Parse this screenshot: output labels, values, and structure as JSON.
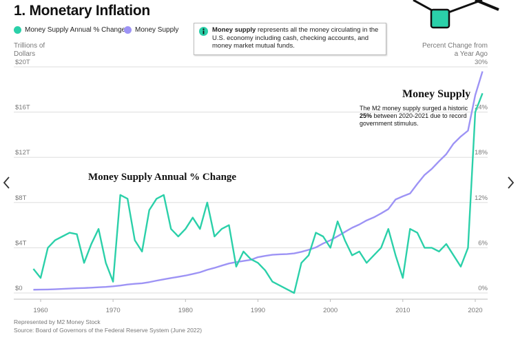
{
  "title": "1. Monetary Inflation",
  "info": {
    "bold": "Money supply",
    "text": " represents all the money circulating in the U.S. economy including cash, checking accounts, and money market mutual funds."
  },
  "chart_data": {
    "type": "line",
    "y_axis_label": "Trillions of Dollars",
    "y2_axis_label": "Percent Change from a Year Ago",
    "xlim": [
      1958.5,
      2022
    ],
    "xticks": [
      1960,
      1970,
      1980,
      1990,
      2000,
      2010,
      2020
    ],
    "ylim": [
      0,
      20
    ],
    "yticks": [
      {
        "value": 0,
        "label": "$0"
      },
      {
        "value": 4,
        "label": "$4T"
      },
      {
        "value": 8,
        "label": "$8T"
      },
      {
        "value": 12,
        "label": "$12T"
      },
      {
        "value": 16,
        "label": "$16T"
      },
      {
        "value": 20,
        "label": "$20T"
      }
    ],
    "y2lim": [
      0,
      30
    ],
    "y2ticks": [
      {
        "value": 0,
        "label": "0%"
      },
      {
        "value": 6,
        "label": "6%"
      },
      {
        "value": 12,
        "label": "12%"
      },
      {
        "value": 18,
        "label": "18%"
      },
      {
        "value": 24,
        "label": "24%"
      },
      {
        "value": 30,
        "label": "30%"
      }
    ],
    "grid": true,
    "x": [
      1959,
      1960,
      1961,
      1962,
      1963,
      1964,
      1965,
      1966,
      1967,
      1968,
      1969,
      1970,
      1971,
      1972,
      1973,
      1974,
      1975,
      1976,
      1977,
      1978,
      1979,
      1980,
      1981,
      1982,
      1983,
      1984,
      1985,
      1986,
      1987,
      1988,
      1989,
      1990,
      1991,
      1992,
      1993,
      1994,
      1995,
      1996,
      1997,
      1998,
      1999,
      2000,
      2001,
      2002,
      2003,
      2004,
      2005,
      2006,
      2007,
      2008,
      2009,
      2010,
      2011,
      2012,
      2013,
      2014,
      2015,
      2016,
      2017,
      2018,
      2019,
      2020,
      2021
    ],
    "series": [
      {
        "name": "Money Supply Annual % Change",
        "color": "#2bd0a9",
        "axis": "y2",
        "values": [
          3.2,
          2.0,
          6.0,
          7.0,
          7.5,
          8.0,
          7.8,
          4.0,
          6.5,
          8.5,
          4.0,
          1.5,
          13.0,
          12.5,
          7.0,
          5.5,
          11.0,
          12.5,
          13.0,
          8.5,
          7.5,
          8.5,
          10.0,
          8.5,
          12.0,
          7.5,
          8.5,
          9.0,
          3.5,
          5.5,
          4.5,
          4.0,
          3.0,
          1.5,
          1.0,
          0.5,
          0.0,
          4.0,
          5.0,
          8.0,
          7.5,
          6.0,
          9.5,
          7.0,
          5.0,
          5.5,
          4.0,
          5.0,
          6.0,
          8.5,
          5.0,
          2.0,
          8.5,
          8.0,
          6.0,
          6.0,
          5.5,
          6.5,
          5.0,
          3.5,
          6.0,
          24.0,
          26.5
        ]
      },
      {
        "name": "Money Supply",
        "color": "#9d93f5",
        "values": [
          0.29,
          0.3,
          0.31,
          0.33,
          0.36,
          0.39,
          0.42,
          0.44,
          0.47,
          0.51,
          0.54,
          0.59,
          0.66,
          0.75,
          0.81,
          0.86,
          0.96,
          1.09,
          1.21,
          1.32,
          1.43,
          1.54,
          1.68,
          1.83,
          2.05,
          2.22,
          2.42,
          2.61,
          2.73,
          2.83,
          2.93,
          3.17,
          3.28,
          3.38,
          3.42,
          3.44,
          3.5,
          3.64,
          3.82,
          4.03,
          4.38,
          4.66,
          5.02,
          5.4,
          5.77,
          6.06,
          6.42,
          6.69,
          7.04,
          7.42,
          8.27,
          8.55,
          8.8,
          9.65,
          10.44,
          10.98,
          11.65,
          12.28,
          13.21,
          13.84,
          14.36,
          17.5,
          19.6
        ]
      }
    ],
    "annotations": [
      {
        "text": "Money Supply Annual % Change"
      },
      {
        "title": "Money Supply",
        "parts": [
          "The M2 money supply surged a historic ",
          "25%",
          " between 2020-2021 due to record government stimulus."
        ]
      }
    ]
  },
  "footer": [
    "Represented by M2 Money Stock",
    "Source: Board of Governors of the Federal Reserve System (June 2022)"
  ]
}
